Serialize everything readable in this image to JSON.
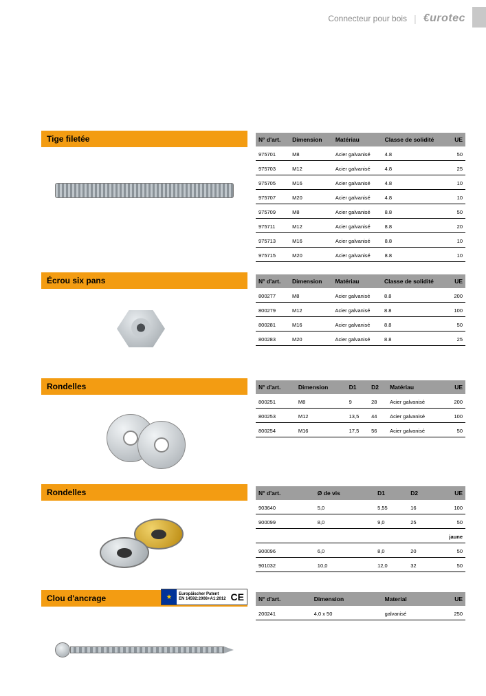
{
  "header": {
    "category": "Connecteur pour bois",
    "brand": "€urotec"
  },
  "sections": [
    {
      "title": "Tige filetée",
      "image": "rod",
      "columns": [
        "N° d'art.",
        "Dimension",
        "Matériau",
        "Classe de solidité",
        "UE"
      ],
      "rows": [
        [
          "975701",
          "M8",
          "Acier galvanisé",
          "4.8",
          "50"
        ],
        [
          "975703",
          "M12",
          "Acier galvanisé",
          "4.8",
          "25"
        ],
        [
          "975705",
          "M16",
          "Acier galvanisé",
          "4.8",
          "10"
        ],
        [
          "975707",
          "M20",
          "Acier galvanisé",
          "4.8",
          "10"
        ],
        [
          "975709",
          "M8",
          "Acier galvanisé",
          "8.8",
          "50"
        ],
        [
          "975711",
          "M12",
          "Acier galvanisé",
          "8.8",
          "20"
        ],
        [
          "975713",
          "M16",
          "Acier galvanisé",
          "8.8",
          "10"
        ],
        [
          "975715",
          "M20",
          "Acier galvanisé",
          "8.8",
          "10"
        ]
      ]
    },
    {
      "title": "Écrou six pans",
      "image": "nut",
      "columns": [
        "N° d'art.",
        "Dimension",
        "Matériau",
        "Classe de solidité",
        "UE"
      ],
      "rows": [
        [
          "800277",
          "M8",
          "Acier galvanisé",
          "8.8",
          "200"
        ],
        [
          "800279",
          "M12",
          "Acier galvanisé",
          "8.8",
          "100"
        ],
        [
          "800281",
          "M16",
          "Acier galvanisé",
          "8.8",
          "50"
        ],
        [
          "800283",
          "M20",
          "Acier galvanisé",
          "8.8",
          "25"
        ]
      ]
    },
    {
      "title": "Rondelles",
      "image": "washers",
      "columns": [
        "N° d'art.",
        "Dimension",
        "D1",
        "D2",
        "Matériau",
        "UE"
      ],
      "rows": [
        [
          "800251",
          "M8",
          "9",
          "28",
          "Acier galvanisé",
          "200"
        ],
        [
          "800253",
          "M12",
          "13,5",
          "44",
          "Acier galvanisé",
          "100"
        ],
        [
          "800254",
          "M16",
          "17,5",
          "56",
          "Acier galvanisé",
          "50"
        ]
      ]
    },
    {
      "title": "Rondelles",
      "image": "washers2",
      "columns": [
        "N° d'art.",
        "Ø de vis",
        "D1",
        "D2",
        "UE"
      ],
      "rows": [
        [
          "903640",
          "5,0",
          "5,55",
          "16",
          "100"
        ],
        [
          "900099",
          "8,0",
          "9,0",
          "25",
          "50"
        ]
      ],
      "subheading": "jaune",
      "rows2": [
        [
          "900096",
          "6,0",
          "8,0",
          "20",
          "50"
        ],
        [
          "901032",
          "10,0",
          "12,0",
          "32",
          "50"
        ]
      ]
    },
    {
      "title": "Clou d'ancrage",
      "image": "nail",
      "ce": {
        "text": "Europäischer Patent",
        "norm": "EN 14592:2008+A1:2012"
      },
      "columns": [
        "N° d'art.",
        "Dimension",
        "Material",
        "UE"
      ],
      "rows": [
        [
          "200241",
          "4,0 x 50",
          "galvanisé",
          "250"
        ]
      ]
    }
  ]
}
